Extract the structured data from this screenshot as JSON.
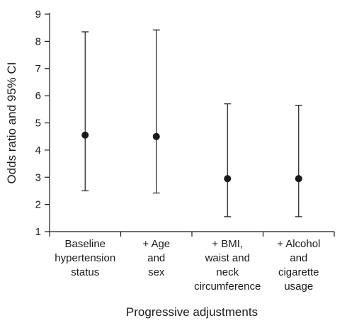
{
  "chart_data": {
    "type": "scatter",
    "title": "",
    "xlabel": "Progressive adjustments",
    "ylabel": "Odds ratio and 95% CI",
    "ylim": [
      1,
      9
    ],
    "yticks": [
      1,
      2,
      3,
      4,
      5,
      6,
      7,
      8,
      9
    ],
    "grid": false,
    "legend": "none",
    "categories": [
      [
        "Baseline",
        "hypertension",
        "status"
      ],
      [
        "+ Age",
        "and",
        "sex"
      ],
      [
        "+ BMI,",
        "waist and",
        "neck",
        "circumference"
      ],
      [
        "+ Alcohol",
        "and",
        "cigarette",
        "usage"
      ]
    ],
    "series": [
      {
        "odds_ratio": [
          4.55,
          4.5,
          2.95,
          2.95
        ],
        "ci_lower": [
          2.5,
          2.42,
          1.55,
          1.55
        ],
        "ci_upper": [
          8.35,
          8.42,
          5.7,
          5.65
        ]
      }
    ],
    "colors": {
      "marks": "#1a1a1a"
    }
  }
}
